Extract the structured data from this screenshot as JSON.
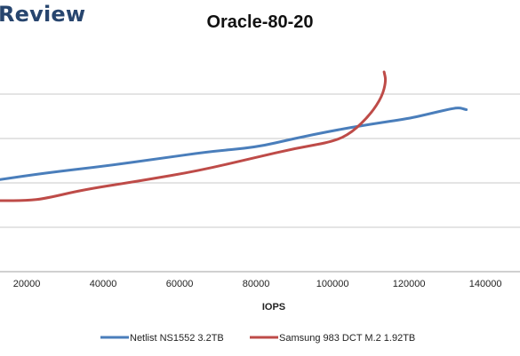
{
  "brand": {
    "text": "Review"
  },
  "chart_data": {
    "type": "line",
    "title": "Oracle-80-20",
    "xlabel": "IOPS",
    "ylabel": "",
    "xlim": [
      13000,
      140000
    ],
    "ylim": [
      0,
      100
    ],
    "x_ticks": [
      20000,
      40000,
      60000,
      80000,
      100000,
      120000,
      140000
    ],
    "x_tick_labels": [
      "20000",
      "40000",
      "60000",
      "80000",
      "100000",
      "120000",
      "140000"
    ],
    "y_gridlines": [
      0,
      20,
      40,
      60,
      80
    ],
    "grid": true,
    "legend": "bottom",
    "series": [
      {
        "name": "Netlist NS1552 3.2TB",
        "color": "#4a7ebb",
        "x": [
          13000,
          25000,
          40000,
          55000,
          67000,
          80000,
          90000,
          100000,
          110000,
          120000,
          125000,
          130000,
          133000,
          135000
        ],
        "y": [
          41.5,
          44.5,
          47.5,
          51,
          54,
          56,
          60,
          63.5,
          66.5,
          69,
          71,
          73,
          74,
          73
        ]
      },
      {
        "name": "Samsung 983 DCT M.2 1.92TB",
        "color": "#be4b48",
        "x": [
          13000,
          20000,
          25000,
          35000,
          50000,
          65000,
          80000,
          90000,
          100000,
          105000,
          110000,
          113000,
          114000,
          113500
        ],
        "y": [
          32,
          32,
          33,
          37,
          41,
          45.5,
          51.5,
          55.5,
          58.5,
          62.5,
          71,
          79,
          86,
          90
        ]
      }
    ]
  }
}
